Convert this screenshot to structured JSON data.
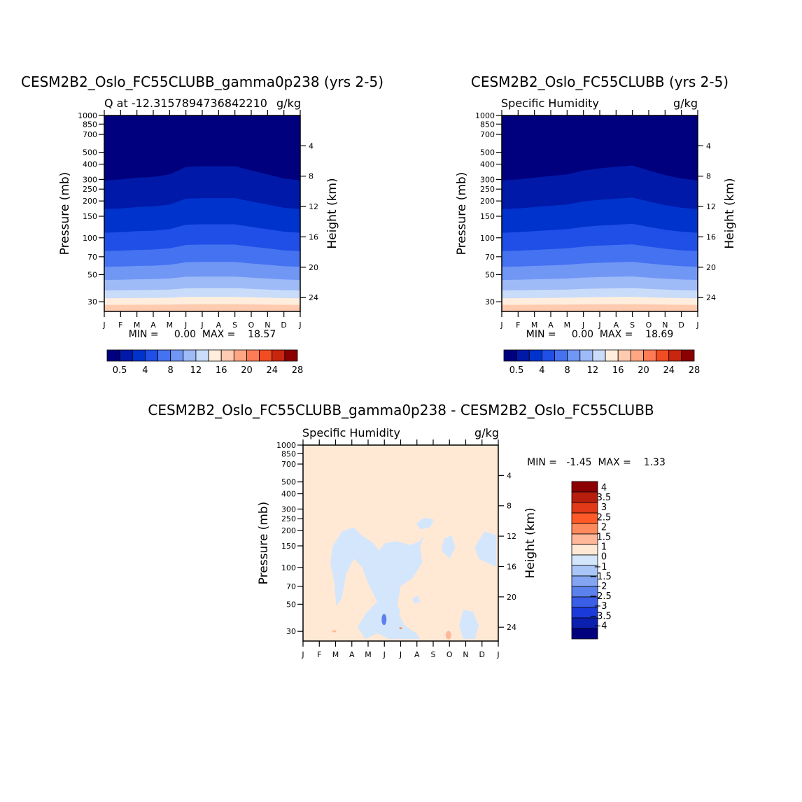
{
  "chart_data": [
    {
      "type": "heatmap",
      "title": "CESM2B2_Oslo_FC55CLUBB_gamma0p238 (yrs 2-5)",
      "subtitle_left": "Q at -12.3157894736842210",
      "subtitle_right": "g/kg",
      "ylabel": "Pressure (mb)",
      "ylabel_right": "Height (km)",
      "months": [
        "J",
        "F",
        "M",
        "A",
        "M",
        "J",
        "J",
        "A",
        "S",
        "O",
        "N",
        "D",
        "J"
      ],
      "pressure_ticks": [
        "30",
        "50",
        "70",
        "100",
        "150",
        "200",
        "250",
        "300",
        "400",
        "500",
        "700",
        "850",
        "1000"
      ],
      "height_ticks": [
        "24",
        "20",
        "16",
        "12",
        "8",
        "4"
      ],
      "stats": "MIN =     0.00  MAX =    18.57",
      "colorbar_ticks": [
        "0.5",
        "4",
        "8",
        "12",
        "16",
        "20",
        "24",
        "28"
      ],
      "top_of_moisture_mb": [
        295,
        300,
        310,
        315,
        330,
        380,
        385,
        385,
        385,
        355,
        330,
        305,
        295
      ]
    },
    {
      "type": "heatmap",
      "title": "CESM2B2_Oslo_FC55CLUBB (yrs 2-5)",
      "subtitle_left": "Specific Humidity",
      "subtitle_right": "g/kg",
      "ylabel": "Pressure (mb)",
      "ylabel_right": "Height (km)",
      "months": [
        "J",
        "F",
        "M",
        "A",
        "M",
        "J",
        "J",
        "A",
        "S",
        "O",
        "N",
        "D",
        "J"
      ],
      "pressure_ticks": [
        "30",
        "50",
        "70",
        "100",
        "150",
        "200",
        "250",
        "300",
        "400",
        "500",
        "700",
        "850",
        "1000"
      ],
      "height_ticks": [
        "24",
        "20",
        "16",
        "12",
        "8",
        "4"
      ],
      "stats": "MIN =     0.00  MAX =    18.69",
      "colorbar_ticks": [
        "0.5",
        "4",
        "8",
        "12",
        "16",
        "20",
        "24",
        "28"
      ],
      "top_of_moisture_mb": [
        295,
        300,
        310,
        320,
        330,
        355,
        370,
        380,
        390,
        355,
        325,
        305,
        295
      ]
    },
    {
      "type": "heatmap",
      "title": "CESM2B2_Oslo_FC55CLUBB_gamma0p238 - CESM2B2_Oslo_FC55CLUBB",
      "subtitle_left": "Specific Humidity",
      "subtitle_right": "g/kg",
      "ylabel": "Pressure (mb)",
      "ylabel_right": "Height (km)",
      "months": [
        "J",
        "F",
        "M",
        "A",
        "M",
        "J",
        "J",
        "A",
        "S",
        "O",
        "N",
        "D",
        "J"
      ],
      "pressure_ticks": [
        "30",
        "50",
        "70",
        "100",
        "150",
        "200",
        "250",
        "300",
        "400",
        "500",
        "700",
        "850",
        "1000"
      ],
      "height_ticks": [
        "24",
        "20",
        "16",
        "12",
        "8",
        "4"
      ],
      "stats": "MIN =   -1.45  MAX =    1.33",
      "colorbar_labels": [
        "4",
        "3.5",
        "3",
        "2.5",
        "2",
        "1.5",
        "1",
        "0",
        "-1",
        "-1.5",
        "-2",
        "-2.5",
        "-3",
        "-3.5",
        "-4"
      ]
    }
  ],
  "colors": {
    "sequential": [
      "#00007f",
      "#0019a8",
      "#0033cc",
      "#1f4fe6",
      "#4572f0",
      "#7197f5",
      "#9ebaf7",
      "#c9dcf9",
      "#ffeedd",
      "#ffcbb0",
      "#ffa685",
      "#ff7b55",
      "#f24d22",
      "#c9260f",
      "#8b0000"
    ],
    "diverging": [
      "#8b0000",
      "#b81e0d",
      "#e03a18",
      "#ff5a28",
      "#ff8a5e",
      "#ffb899",
      "#ffe9d5",
      "#d4e6fc",
      "#aac6f8",
      "#84a6f2",
      "#5b82ec",
      "#3a5ee6",
      "#1a3ad9",
      "#0c20b0",
      "#00007f"
    ],
    "diff_background": "#ffe9d5",
    "diff_negative": "#d4e6fc"
  }
}
